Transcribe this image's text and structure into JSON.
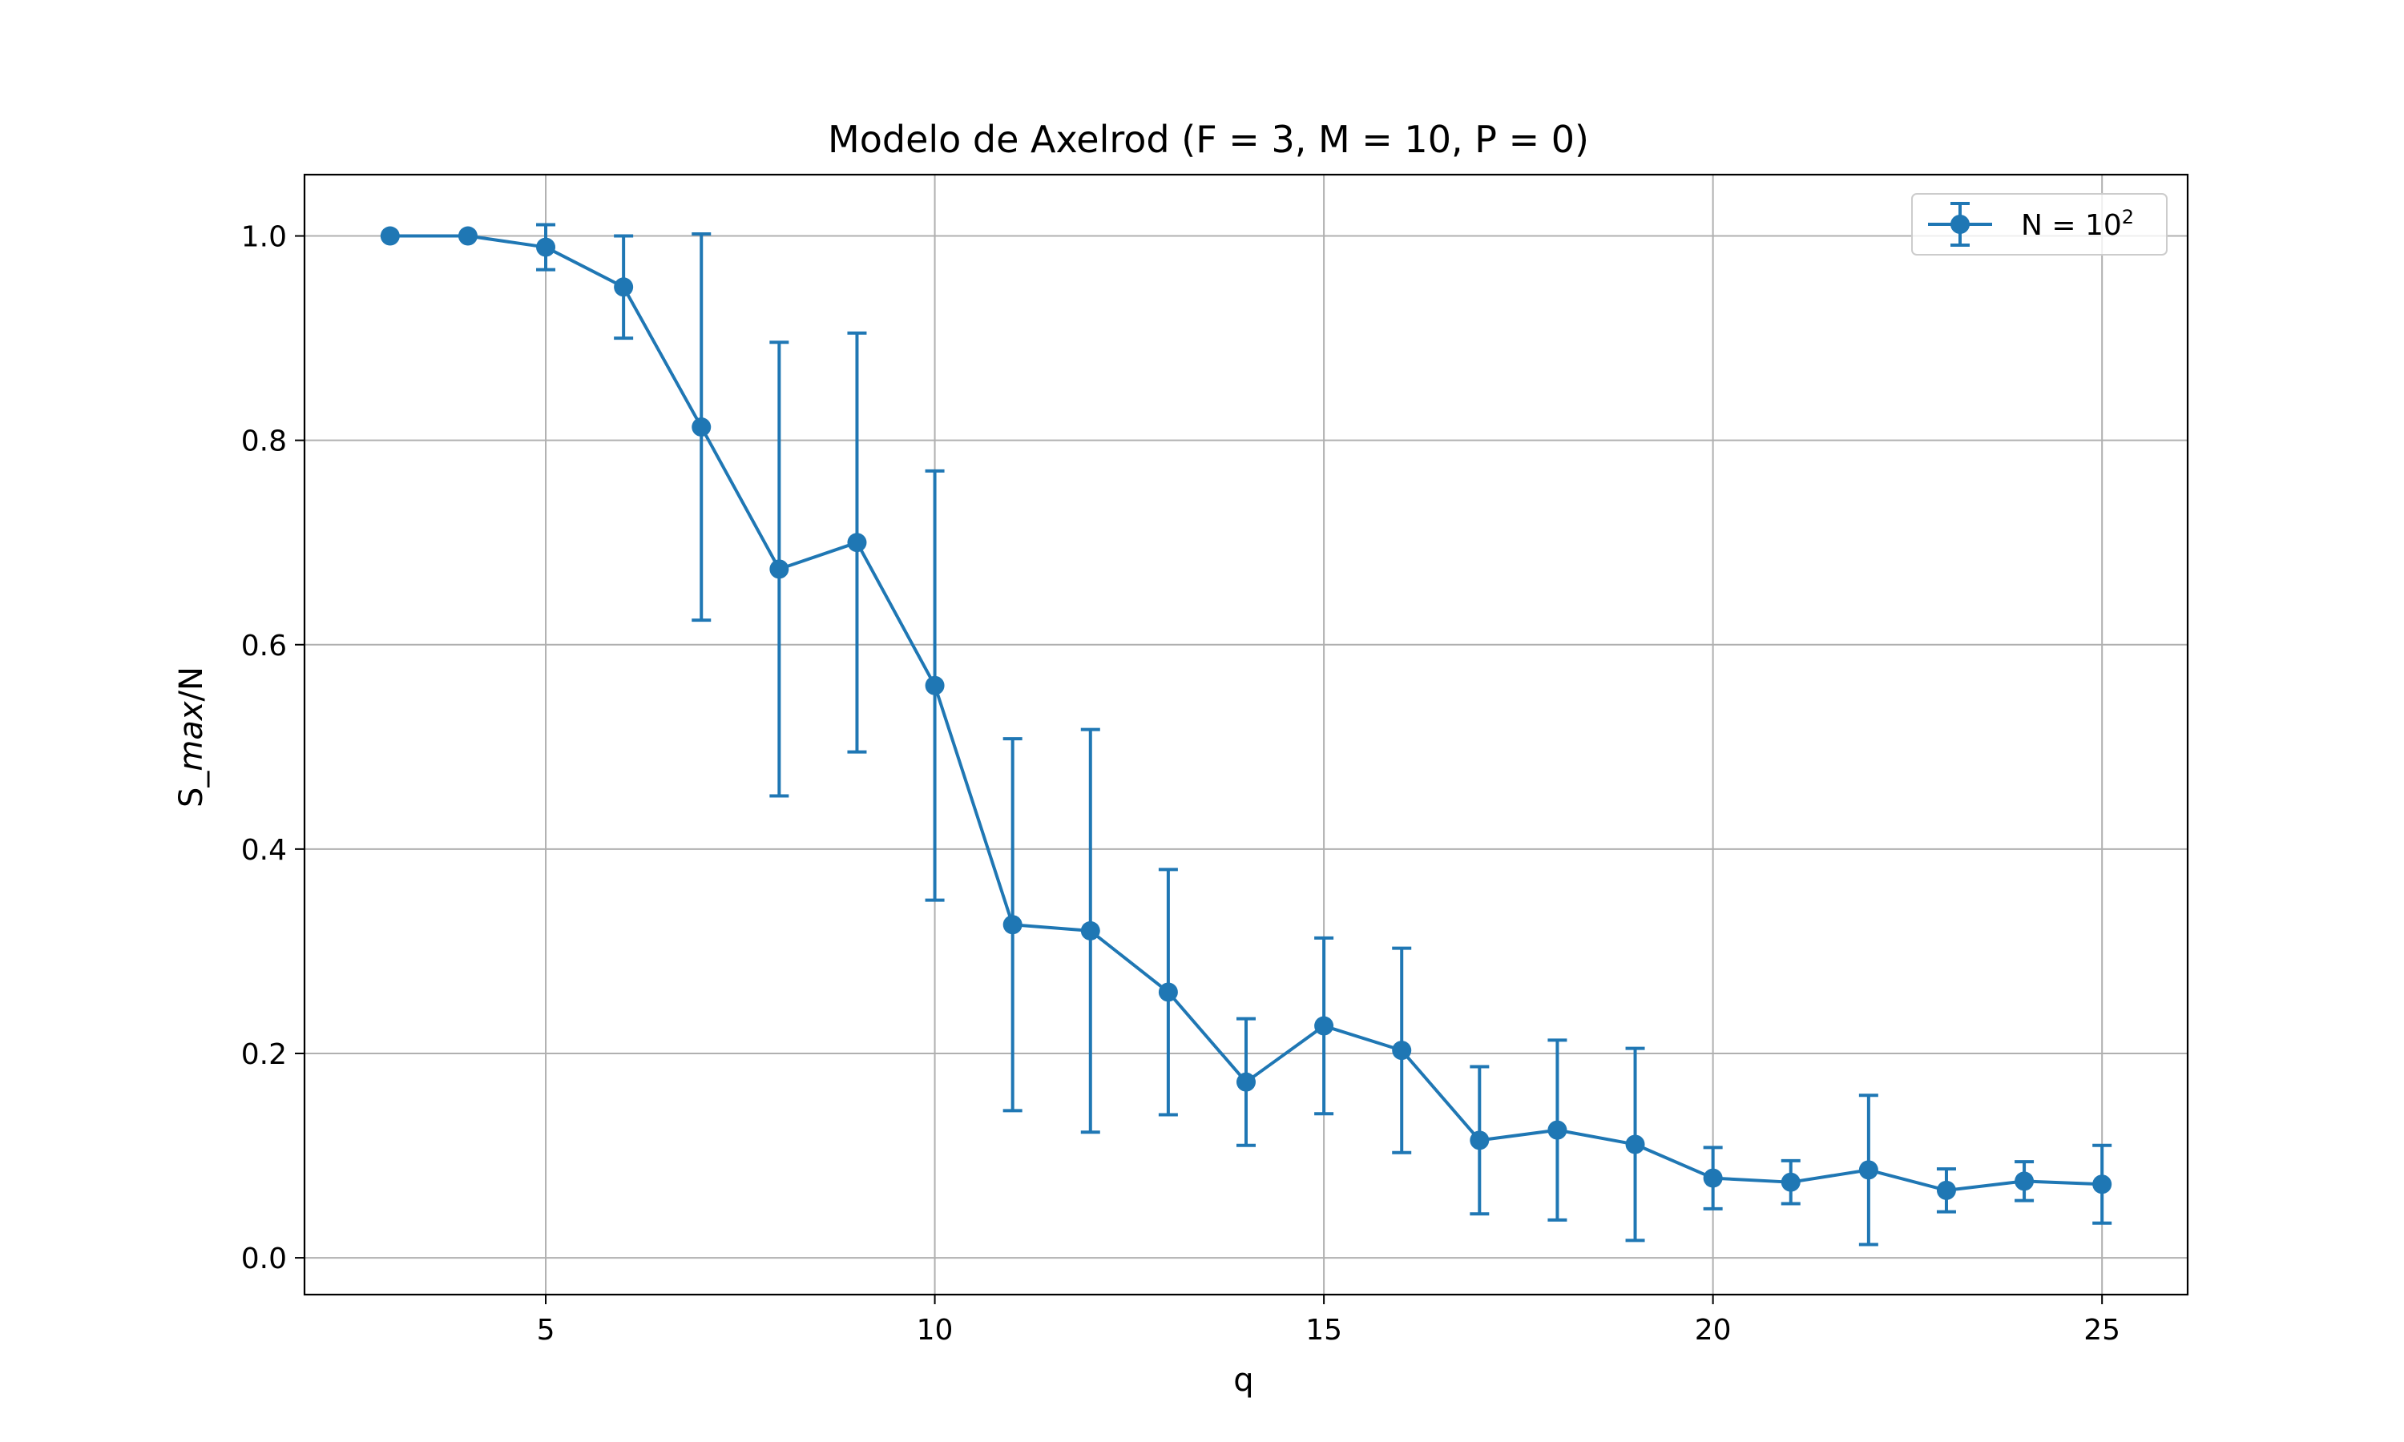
{
  "chart_data": {
    "type": "line",
    "title": "Modelo de Axelrod (F = 3, M = 10, P = 0)",
    "xlabel": "q",
    "ylabel": {
      "prefix": "S_",
      "italic": "max",
      "suffix": "/N"
    },
    "xlim": [
      1.9,
      26.1
    ],
    "ylim": [
      -0.036,
      1.06
    ],
    "xticks": [
      5,
      10,
      15,
      20,
      25
    ],
    "yticks": [
      0.0,
      0.2,
      0.4,
      0.6,
      0.8,
      1.0
    ],
    "ytick_labels": [
      "0.0",
      "0.2",
      "0.4",
      "0.6",
      "0.8",
      "1.0"
    ],
    "grid": true,
    "legend": {
      "position": "top-right",
      "label": "N = 10",
      "label_superscript": "2"
    },
    "series": [
      {
        "name": "N = 10^2",
        "color": "#1f77b4",
        "marker": "circle",
        "x": [
          3,
          4,
          5,
          6,
          7,
          8,
          9,
          10,
          11,
          12,
          13,
          14,
          15,
          16,
          17,
          18,
          19,
          20,
          21,
          22,
          23,
          24,
          25
        ],
        "y": [
          1.0,
          1.0,
          0.989,
          0.95,
          0.813,
          0.674,
          0.7,
          0.56,
          0.326,
          0.32,
          0.26,
          0.172,
          0.227,
          0.203,
          0.115,
          0.125,
          0.111,
          0.078,
          0.074,
          0.086,
          0.066,
          0.075,
          0.072
        ],
        "yerr": [
          0.0,
          0.0,
          0.022,
          0.05,
          0.189,
          0.222,
          0.205,
          0.21,
          0.182,
          0.197,
          0.12,
          0.062,
          0.086,
          0.1,
          0.072,
          0.088,
          0.094,
          0.03,
          0.021,
          0.073,
          0.021,
          0.019,
          0.038
        ]
      }
    ]
  }
}
